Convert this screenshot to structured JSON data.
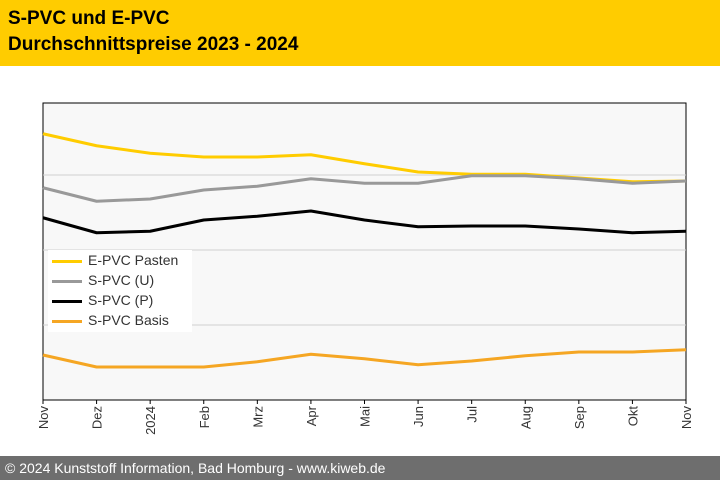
{
  "header": {
    "title_line1": "S-PVC und E-PVC",
    "title_line2": "Durchschnittspreise 2023 - 2024"
  },
  "footer": {
    "text": "© 2024 Kunststoff Information, Bad Homburg - www.kiweb.de"
  },
  "chart_data": {
    "type": "line",
    "title": "S-PVC und E-PVC Durchschnittspreise 2023 - 2024",
    "xlabel": "",
    "ylabel": "",
    "y_unit_note": "relative gridline units (no y-axis labels shown)",
    "ylim": [
      0,
      3.96
    ],
    "y_gridlines": [
      1,
      2,
      3
    ],
    "grid": true,
    "legend_position": "left-middle",
    "categories": [
      "Nov",
      "Dez",
      "2024",
      "Feb",
      "Mrz",
      "Apr",
      "Mai",
      "Jun",
      "Jul",
      "Aug",
      "Sep",
      "Okt",
      "Nov"
    ],
    "series": [
      {
        "name": "E-PVC Pasten",
        "color": "#ffcc00",
        "values": [
          3.55,
          3.39,
          3.29,
          3.24,
          3.24,
          3.27,
          3.15,
          3.04,
          3.01,
          3.01,
          2.96,
          2.91,
          2.92
        ]
      },
      {
        "name": "S-PVC (U)",
        "color": "#999999",
        "values": [
          2.83,
          2.65,
          2.68,
          2.8,
          2.85,
          2.95,
          2.89,
          2.89,
          2.99,
          2.99,
          2.95,
          2.89,
          2.92
        ]
      },
      {
        "name": "S-PVC (P)",
        "color": "#000000",
        "values": [
          2.43,
          2.23,
          2.25,
          2.4,
          2.45,
          2.52,
          2.4,
          2.31,
          2.32,
          2.32,
          2.28,
          2.23,
          2.25
        ]
      },
      {
        "name": "S-PVC Basis",
        "color": "#f5a623",
        "values": [
          0.6,
          0.44,
          0.44,
          0.44,
          0.51,
          0.61,
          0.55,
          0.47,
          0.52,
          0.59,
          0.64,
          0.64,
          0.67
        ]
      }
    ]
  }
}
